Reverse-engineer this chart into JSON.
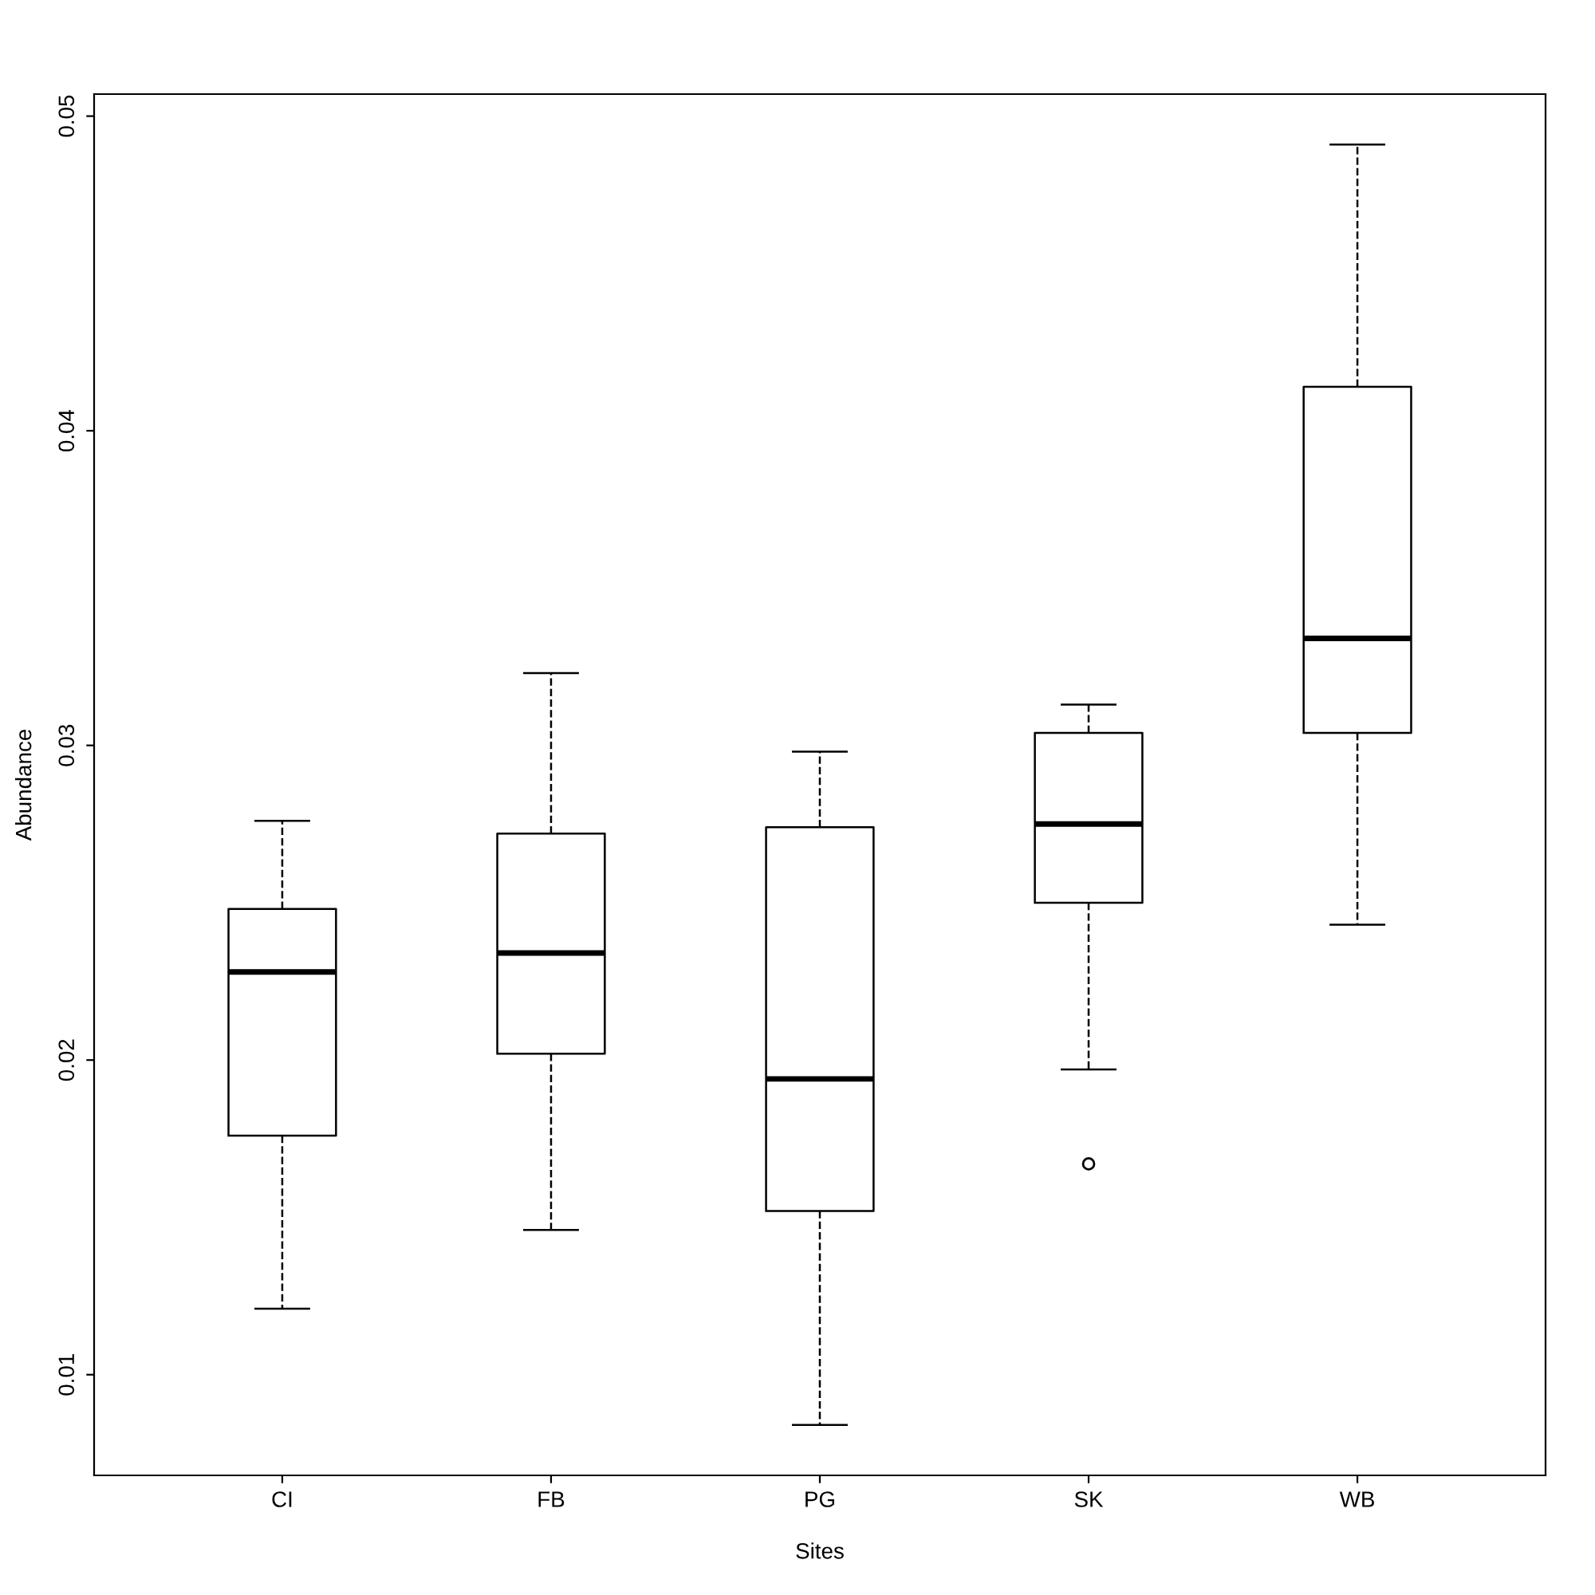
{
  "chart_data": {
    "type": "box",
    "xlabel": "Sites",
    "ylabel": "Abundance",
    "categories": [
      "CI",
      "FB",
      "PG",
      "SK",
      "WB"
    ],
    "boxes": [
      {
        "low": 0.0121,
        "q1": 0.0176,
        "median": 0.0228,
        "q3": 0.0248,
        "high": 0.0276
      },
      {
        "low": 0.0146,
        "q1": 0.0202,
        "median": 0.0234,
        "q3": 0.0272,
        "high": 0.0323
      },
      {
        "low": 0.0084,
        "q1": 0.0152,
        "median": 0.0194,
        "q3": 0.0274,
        "high": 0.0298
      },
      {
        "low": 0.0197,
        "q1": 0.025,
        "median": 0.0275,
        "q3": 0.0304,
        "high": 0.0313,
        "outliers": [
          0.0167
        ]
      },
      {
        "low": 0.0243,
        "q1": 0.0304,
        "median": 0.0334,
        "q3": 0.0414,
        "high": 0.0491
      }
    ],
    "color": "#000000",
    "line_style": "dashed",
    "ylim": [
      0.0068,
      0.0507
    ],
    "yticks": [
      0.01,
      0.02,
      0.03,
      0.04,
      0.05
    ],
    "grid": false
  }
}
